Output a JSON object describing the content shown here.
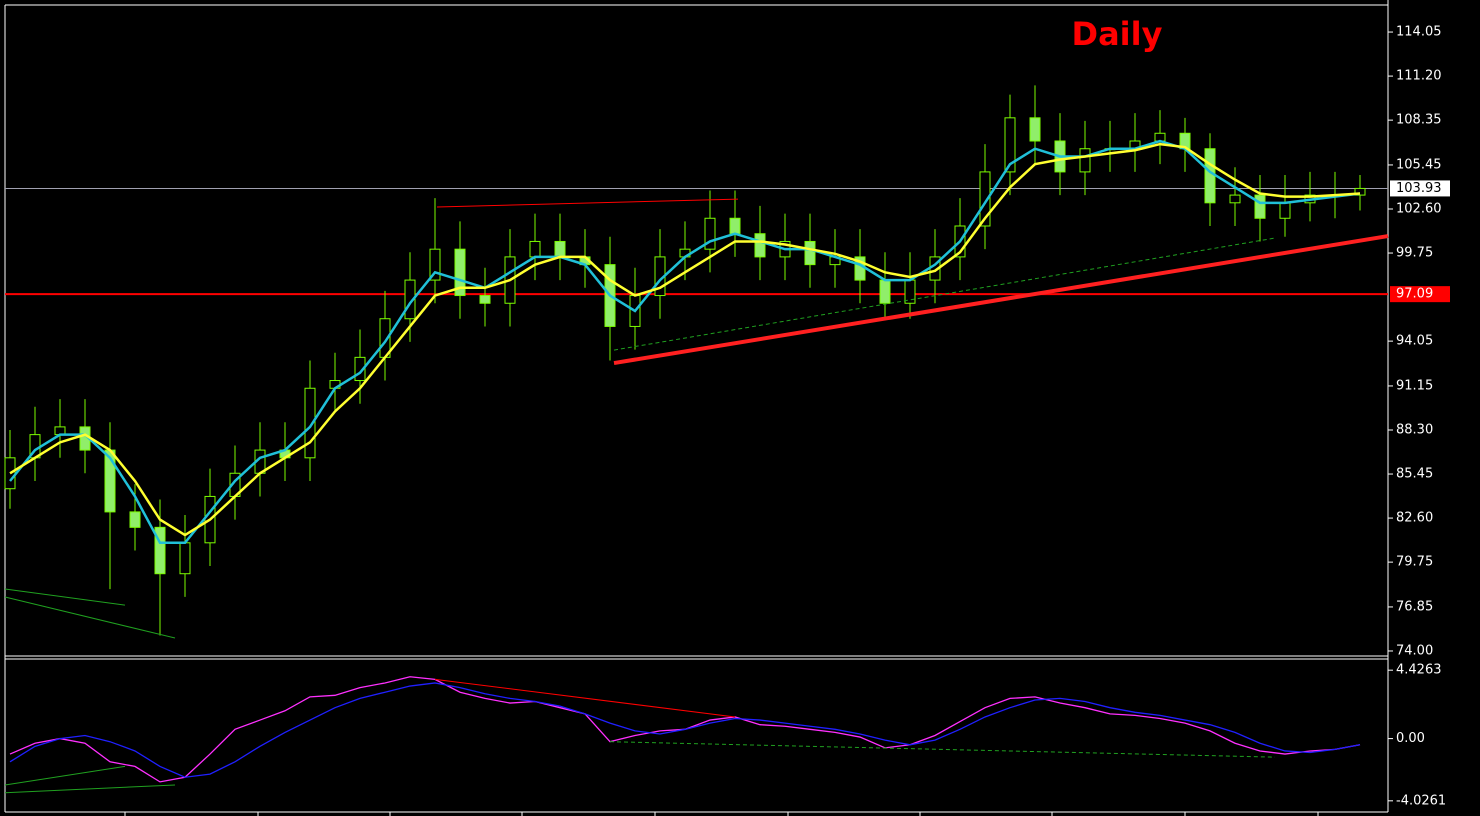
{
  "chart_data": [
    {
      "type": "candlestick",
      "title": "Daily",
      "title_color": "#ff0000",
      "open": [
        84.5,
        86.5,
        88,
        88.5,
        87,
        83,
        82,
        79,
        81,
        84,
        85.5,
        87,
        86.5,
        91,
        91.5,
        93,
        95.5,
        98,
        100,
        97,
        96.5,
        99.5,
        100.5,
        99.5,
        99,
        95,
        97,
        99.5,
        100,
        102,
        101,
        99.5,
        100.5,
        99,
        99.5,
        98,
        96.5,
        98,
        99.5,
        101.5,
        105,
        108.5,
        107,
        105,
        106.5,
        106.5,
        107,
        107.5,
        106.5,
        103,
        103.5,
        102,
        103,
        103.5,
        103.5
      ],
      "high": [
        88.3,
        89.8,
        90.3,
        90.3,
        88.8,
        84.8,
        83.8,
        82.8,
        85.8,
        87.3,
        88.8,
        88.8,
        92.8,
        93.3,
        94.8,
        97.3,
        99.8,
        103.3,
        101.8,
        98.8,
        101.3,
        102.3,
        102.3,
        101.3,
        100.8,
        98.8,
        101.3,
        101.8,
        103.8,
        103.8,
        102.8,
        102.3,
        102.3,
        101.3,
        101.3,
        99.8,
        99.8,
        101.3,
        103.3,
        106.8,
        110,
        110.6,
        108.8,
        108.3,
        108.3,
        108.8,
        109,
        108.5,
        107.5,
        105.3,
        104.8,
        104.8,
        105,
        105,
        104.8
      ],
      "low": [
        83.2,
        85,
        86.5,
        85.5,
        78,
        80.5,
        75,
        77.5,
        79.5,
        82.5,
        84,
        85,
        85,
        89.5,
        90,
        91.5,
        94,
        96.5,
        95.5,
        95,
        95,
        98,
        98,
        97.5,
        92.8,
        93.5,
        95.5,
        98,
        98.5,
        99.5,
        98,
        98,
        97.5,
        97.5,
        96.5,
        95.5,
        95.5,
        96.5,
        98,
        100,
        103.5,
        105.5,
        103.5,
        103.5,
        105,
        105,
        105.5,
        105,
        101.5,
        101.5,
        100.5,
        100.8,
        101.8,
        102,
        102.5
      ],
      "close": [
        86.5,
        88,
        88.5,
        87,
        83,
        82,
        79,
        81,
        84,
        85.5,
        87,
        86.5,
        91,
        91.5,
        93,
        95.5,
        98,
        100,
        97,
        96.5,
        99.5,
        100.5,
        99.5,
        99,
        95,
        97,
        99.5,
        100,
        102,
        101,
        99.5,
        100.5,
        99,
        99.5,
        98,
        96.5,
        98,
        99.5,
        101.5,
        105,
        108.5,
        107,
        105,
        106.5,
        106.5,
        107,
        107.5,
        106.5,
        103,
        103.5,
        102,
        103,
        103.5,
        103.5,
        103.93
      ],
      "up_color": "#000000",
      "down_color": "#90ee6a",
      "candle_stroke": "#7cfc00",
      "series": [
        {
          "color": "#20c0d8",
          "values": [
            85,
            87,
            88,
            88,
            86.5,
            84,
            81,
            81,
            83,
            85,
            86.5,
            87,
            88.5,
            91,
            92,
            94,
            96.5,
            98.5,
            98,
            97.5,
            98.5,
            99.5,
            99.5,
            99,
            97,
            96,
            98,
            99.5,
            100.5,
            101,
            100.5,
            100,
            100,
            99.5,
            99,
            98,
            98,
            99,
            100.5,
            103,
            105.5,
            106.5,
            106,
            106,
            106.5,
            106.5,
            107,
            106.5,
            105,
            104,
            103,
            103,
            103.2,
            103.4,
            103.6
          ]
        },
        {
          "color": "#ffff30",
          "values": [
            85.5,
            86.5,
            87.5,
            88,
            87,
            85,
            82.5,
            81.5,
            82.5,
            84,
            85.5,
            86.5,
            87.5,
            89.5,
            91,
            93,
            95,
            97,
            97.5,
            97.5,
            98,
            99,
            99.5,
            99.5,
            98,
            97,
            97.5,
            98.5,
            99.5,
            100.5,
            100.5,
            100.3,
            100,
            99.7,
            99.2,
            98.5,
            98.2,
            98.6,
            99.8,
            102,
            104,
            105.5,
            105.8,
            106,
            106.2,
            106.4,
            106.8,
            106.6,
            105.5,
            104.5,
            103.6,
            103.4,
            103.4,
            103.5,
            103.6
          ]
        }
      ],
      "ylim": [
        73.74,
        115.8
      ],
      "yticks": [
        {
          "value": 74,
          "label": "74.00"
        },
        76.85,
        79.75,
        {
          "value": 82.6,
          "label": "82.60"
        },
        85.45,
        {
          "value": 88.3,
          "label": "88.30"
        },
        91.15,
        94.05,
        99.75,
        {
          "value": 102.6,
          "label": "102.60"
        },
        105.45,
        108.35,
        {
          "value": 111.2,
          "label": "111.20"
        },
        114.05
      ],
      "hline": {
        "value": 97.09,
        "color": "#ff0000"
      },
      "last_price": {
        "value": 103.93,
        "color": "#a0a0b0"
      },
      "trendlines": [
        {
          "x": [
            24.16,
            55.12
          ],
          "y": [
            92.63,
            100.85
          ],
          "color": "#ff2020",
          "width": 4,
          "dash": false
        },
        {
          "x": [
            17.08,
            29.12
          ],
          "y": [
            102.73,
            103.24
          ],
          "color": "#ff0000",
          "width": 1,
          "dash": false
        },
        {
          "x": [
            24.16,
            50.6
          ],
          "y": [
            93.47,
            100.72
          ],
          "color": "#20a020",
          "width": 1,
          "dash": true
        },
        {
          "x": [
            -0.2,
            4.6
          ],
          "y": [
            78.01,
            76.97
          ],
          "color": "#20a020",
          "width": 1,
          "dash": false
        },
        {
          "x": [
            -0.2,
            6.6
          ],
          "y": [
            77.49,
            74.84
          ],
          "color": "#20a020",
          "width": 1,
          "dash": false
        }
      ]
    },
    {
      "type": "line",
      "series": [
        {
          "color": "#ff30ff",
          "values": [
            -1.0,
            -0.3,
            0.0,
            -0.3,
            -1.5,
            -1.8,
            -2.8,
            -2.5,
            -1.0,
            0.6,
            1.2,
            1.8,
            2.7,
            2.8,
            3.3,
            3.6,
            4.0,
            3.83,
            3.0,
            2.6,
            2.3,
            2.4,
            2.0,
            1.6,
            -0.2,
            0.2,
            0.5,
            0.6,
            1.2,
            1.4,
            0.9,
            0.8,
            0.6,
            0.4,
            0.1,
            -0.6,
            -0.4,
            0.2,
            1.1,
            2.0,
            2.6,
            2.7,
            2.3,
            2.0,
            1.6,
            1.5,
            1.3,
            1.0,
            0.5,
            -0.3,
            -0.8,
            -1.0,
            -0.8,
            -0.7,
            -0.4
          ]
        },
        {
          "color": "#2020ff",
          "values": [
            -1.5,
            -0.5,
            0.0,
            0.2,
            -0.2,
            -0.8,
            -1.8,
            -2.5,
            -2.3,
            -1.5,
            -0.5,
            0.4,
            1.2,
            2.0,
            2.6,
            3.0,
            3.4,
            3.6,
            3.3,
            2.9,
            2.6,
            2.4,
            2.1,
            1.6,
            1.0,
            0.5,
            0.3,
            0.6,
            1.0,
            1.3,
            1.2,
            1.0,
            0.8,
            0.6,
            0.3,
            -0.1,
            -0.4,
            -0.1,
            0.6,
            1.4,
            2.0,
            2.5,
            2.6,
            2.4,
            2.0,
            1.7,
            1.5,
            1.2,
            0.9,
            0.4,
            -0.3,
            -0.8,
            -0.9,
            -0.7,
            -0.4
          ]
        }
      ],
      "ylim": [
        -4.62,
        5.15
      ],
      "yticks": [
        -4.0261,
        {
          "value": 0,
          "label": "0.00"
        },
        4.4263
      ],
      "trendlines": [
        {
          "x": [
            17,
            29
          ],
          "y": [
            3.83,
            1.4
          ],
          "color": "#ff0000",
          "width": 1,
          "dash": false
        },
        {
          "x": [
            24,
            50.6
          ],
          "y": [
            -0.2,
            -1.2
          ],
          "color": "#20a020",
          "width": 1,
          "dash": true
        },
        {
          "x": [
            -0.2,
            4.6
          ],
          "y": [
            -3.0,
            -1.8
          ],
          "color": "#20a020",
          "width": 1,
          "dash": false
        },
        {
          "x": [
            -0.2,
            6.6
          ],
          "y": [
            -3.5,
            -3.0
          ],
          "color": "#20a020",
          "width": 1,
          "dash": false
        }
      ]
    }
  ]
}
